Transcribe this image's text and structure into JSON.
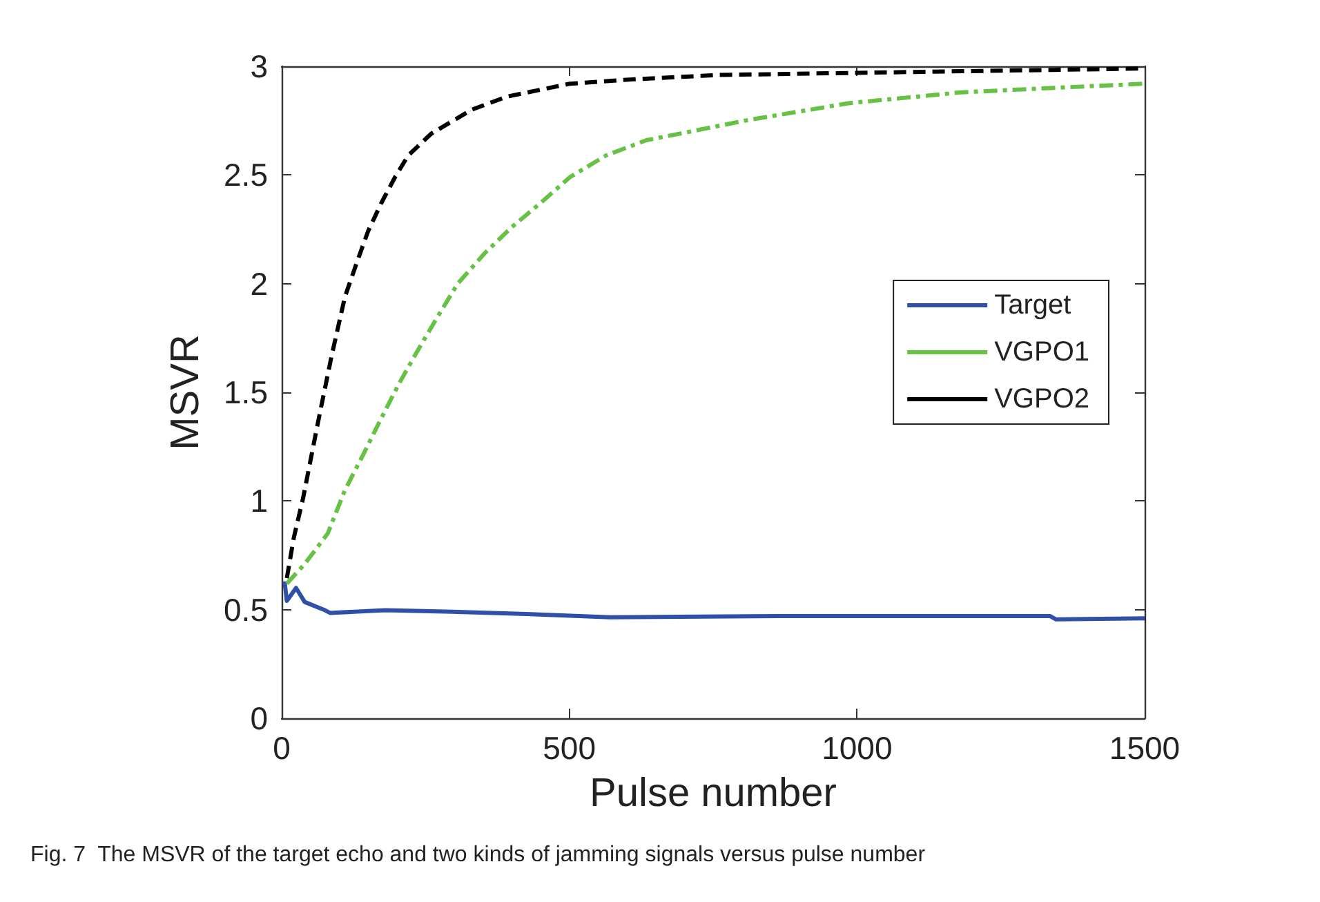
{
  "chart_data": {
    "type": "line",
    "xlabel": "Pulse number",
    "ylabel": "MSVR",
    "xlim": [
      0,
      1500
    ],
    "xticks": [
      0,
      500,
      1000,
      1500
    ],
    "ylim": [
      0,
      3
    ],
    "yticks": [
      0,
      0.5,
      1,
      1.5,
      2,
      2.5,
      3
    ],
    "grid": false,
    "legend": "right",
    "marker": "none",
    "annotations": [
      "Fig. 7  The MSVR of the target echo and two kinds of jamming signals versus pulse number"
    ],
    "series": [
      {
        "name": "Target",
        "color": "#3050a8",
        "line_style": "solid",
        "x": [
          5,
          9,
          25,
          40,
          73,
          84,
          180,
          297,
          424,
          571,
          864,
          1107,
          1336,
          1346,
          1500
        ],
        "values": [
          0.63,
          0.54,
          0.6,
          0.535,
          0.5,
          0.485,
          0.497,
          0.49,
          0.48,
          0.465,
          0.47,
          0.47,
          0.47,
          0.455,
          0.46
        ]
      },
      {
        "name": "VGPO1",
        "color": "#66c144",
        "line_style": "dashdot",
        "x": [
          9,
          40,
          80,
          110,
          143,
          173,
          204,
          236,
          267,
          306,
          353,
          400,
          454,
          501,
          564,
          634,
          711,
          805,
          985,
          1180,
          1336,
          1500
        ],
        "values": [
          0.62,
          0.71,
          0.85,
          1.05,
          1.22,
          1.38,
          1.54,
          1.69,
          1.83,
          2.0,
          2.14,
          2.26,
          2.38,
          2.49,
          2.59,
          2.66,
          2.7,
          2.75,
          2.83,
          2.88,
          2.9,
          2.92
        ]
      },
      {
        "name": "VGPO2",
        "color": "#000000",
        "line_style": "dashed",
        "x": [
          9,
          21,
          37,
          63,
          87,
          110,
          131,
          150,
          173,
          197,
          220,
          260,
          330,
          391,
          501,
          611,
          758,
          1000,
          1500
        ],
        "values": [
          0.645,
          0.83,
          1.01,
          1.36,
          1.67,
          1.94,
          2.1,
          2.24,
          2.37,
          2.49,
          2.59,
          2.69,
          2.8,
          2.86,
          2.92,
          2.94,
          2.96,
          2.97,
          2.99
        ]
      }
    ]
  }
}
